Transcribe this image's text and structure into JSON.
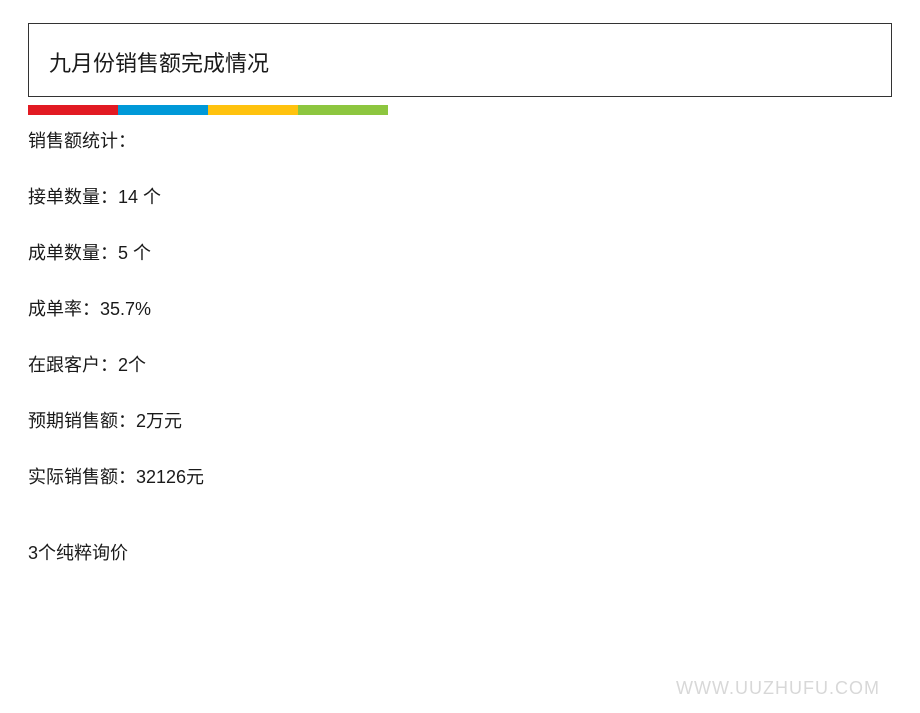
{
  "header": {
    "title": "九月份销售额完成情况"
  },
  "color_strip": {
    "segments": [
      {
        "color": "#e21a22",
        "width": 90
      },
      {
        "color": "#0099d8",
        "width": 90
      },
      {
        "color": "#ffc20e",
        "width": 90
      },
      {
        "color": "#8dc63f",
        "width": 90
      }
    ]
  },
  "stats": {
    "heading": "销售额统计：",
    "order_received": "接单数量：14  个",
    "order_completed": "成单数量：5 个",
    "completion_rate": "成单率：35.7%",
    "following_customers": "在跟客户：2个",
    "expected_sales": "预期销售额：2万元",
    "actual_sales": "实际销售额：32126元"
  },
  "note": "3个纯粹询价",
  "watermark": "WWW.UUZHUFU.COM"
}
